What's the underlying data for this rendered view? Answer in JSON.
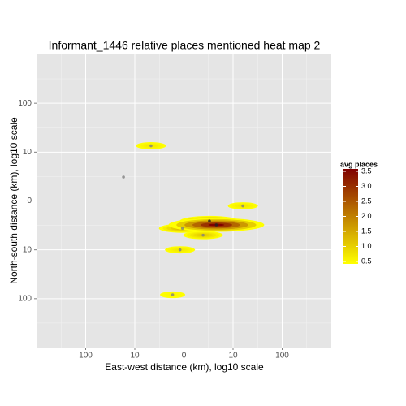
{
  "chart_data": {
    "type": "heatmap",
    "title": "Informant_1446 relative places mentioned heat map 2",
    "x_label": "East-west distance (km), log10 scale",
    "y_label": "North-south distance (km), log10 scale",
    "xlim": [
      -3,
      3
    ],
    "ylim": [
      -3,
      3
    ],
    "xticks": [
      {
        "value": -2,
        "label": "100"
      },
      {
        "value": -1,
        "label": "10"
      },
      0,
      {
        "value": 1,
        "label": "10"
      },
      {
        "value": 2,
        "label": "100"
      }
    ],
    "yticks": [
      {
        "value": -2,
        "label": "100"
      },
      {
        "value": -1,
        "label": "10"
      },
      0,
      {
        "value": 1,
        "label": "10"
      },
      {
        "value": 2,
        "label": "100"
      }
    ],
    "grid": true,
    "x": [
      -0.67,
      -1.23,
      1.2,
      0.52,
      0.66,
      -0.03,
      0.39,
      -0.08,
      -0.23
    ],
    "y": [
      1.13,
      0.49,
      -0.1,
      -0.41,
      -0.49,
      -0.56,
      -0.7,
      -1.0,
      -1.92
    ],
    "values": [
      0.8,
      null,
      0.8,
      2.0,
      3.5,
      1.5,
      1.2,
      0.8,
      0.6
    ],
    "legend_title": "avg places",
    "color_low": "#ffff00",
    "color_high": "#800000",
    "color_lim": [
      0.5,
      3.5
    ],
    "color_ticks": [
      0.5,
      {
        "value": 1,
        "label": "1.0"
      },
      1.5,
      {
        "value": 2,
        "label": "2.0"
      },
      2.5,
      {
        "value": 3,
        "label": "3.0"
      },
      3.5
    ]
  }
}
